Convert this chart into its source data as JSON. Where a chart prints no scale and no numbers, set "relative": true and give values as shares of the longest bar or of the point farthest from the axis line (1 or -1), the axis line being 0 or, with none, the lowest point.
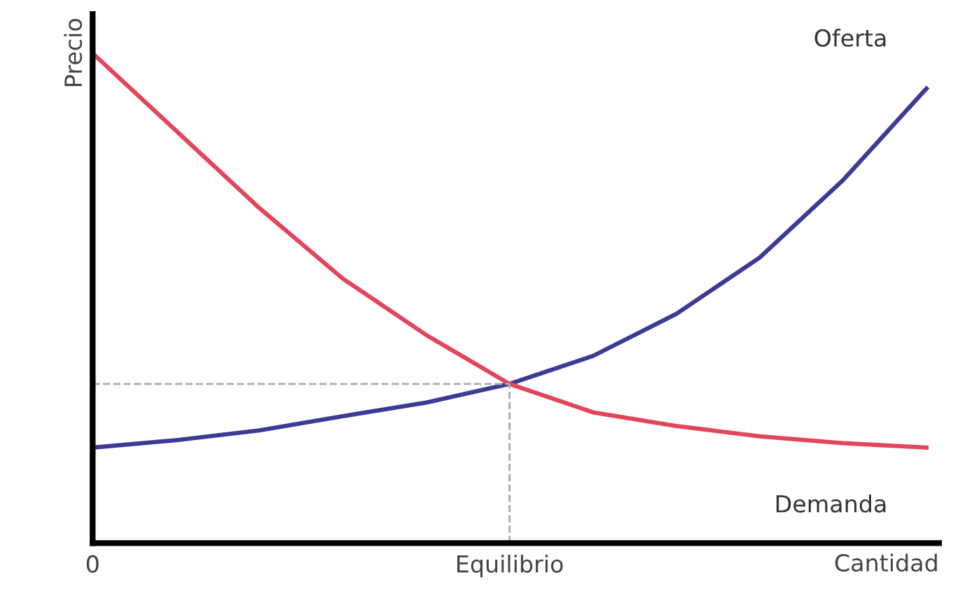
{
  "chart_data": {
    "type": "line",
    "relative": true,
    "ylabel": "Precio",
    "xlabel": "Cantidad",
    "categories": [
      "0",
      null,
      null,
      null,
      null,
      "Equilibrio",
      null,
      null,
      null,
      null,
      null
    ],
    "series": [
      {
        "name": "Oferta",
        "color": "#3b3b96",
        "values": [
          0.195,
          0.21,
          0.23,
          0.259,
          0.287,
          0.325,
          0.382,
          0.468,
          0.583,
          0.741,
          0.928
        ]
      },
      {
        "name": "Demanda",
        "color": "#e2455c",
        "values": [
          1,
          0.842,
          0.684,
          0.54,
          0.425,
          0.325,
          0.267,
          0.239,
          0.218,
          0.204,
          0.195
        ]
      }
    ],
    "ref_lines": [
      {
        "axis": "x",
        "value": "Equilibrio",
        "color": "#aaaaaa",
        "line_style": "dashed"
      },
      {
        "axis": "y",
        "value": 0.325,
        "color": "#aaaaaa",
        "line_style": "dashed"
      }
    ],
    "grid": false,
    "legend": false,
    "marker": "none",
    "line_style": "solid"
  }
}
